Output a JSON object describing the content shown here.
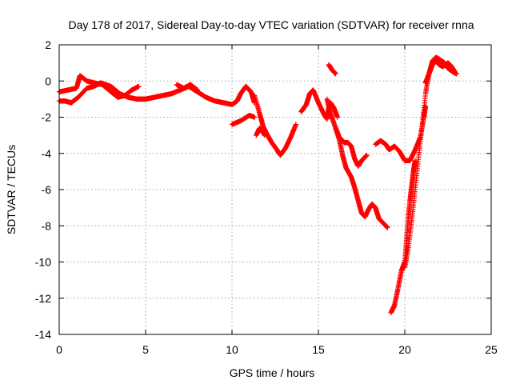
{
  "chart_data": {
    "type": "scatter",
    "title": "Day 178 of 2017, Sidereal Day-to-day VTEC variation (SDTVAR) for receiver rnna",
    "xlabel": "GPS time / hours",
    "ylabel": "SDTVAR / TECUs",
    "xlim": [
      0,
      25
    ],
    "ylim": [
      -14,
      2
    ],
    "xticks": [
      "0",
      "5",
      "10",
      "15",
      "20",
      "25"
    ],
    "yticks": [
      "2",
      "0",
      "-2",
      "-4",
      "-6",
      "-8",
      "-10",
      "-12",
      "-14"
    ],
    "grid": true,
    "marker": "plus",
    "color": "#ff0000",
    "segments": [
      [
        [
          0.0,
          -0.6
        ],
        [
          0.5,
          -0.5
        ],
        [
          1.0,
          -0.4
        ],
        [
          1.2,
          0.3
        ],
        [
          1.6,
          0.0
        ],
        [
          2.0,
          -0.1
        ],
        [
          2.5,
          -0.2
        ],
        [
          3.0,
          -0.6
        ],
        [
          3.4,
          -0.9
        ],
        [
          3.8,
          -0.8
        ],
        [
          4.2,
          -0.5
        ],
        [
          4.6,
          -0.3
        ]
      ],
      [
        [
          0.0,
          -1.1
        ],
        [
          0.3,
          -1.1
        ],
        [
          0.7,
          -1.2
        ],
        [
          1.1,
          -0.9
        ],
        [
          1.6,
          -0.4
        ],
        [
          2.0,
          -0.3
        ],
        [
          2.4,
          -0.1
        ],
        [
          3.0,
          -0.3
        ],
        [
          3.5,
          -0.7
        ],
        [
          4.0,
          -0.9
        ],
        [
          4.5,
          -1.0
        ],
        [
          5.0,
          -1.0
        ],
        [
          5.5,
          -0.9
        ],
        [
          6.0,
          -0.8
        ],
        [
          6.5,
          -0.7
        ],
        [
          7.0,
          -0.5
        ],
        [
          7.5,
          -0.3
        ],
        [
          8.0,
          -0.6
        ],
        [
          8.5,
          -0.9
        ],
        [
          9.0,
          -1.1
        ],
        [
          9.5,
          -1.2
        ],
        [
          10.0,
          -1.3
        ],
        [
          10.3,
          -1.1
        ],
        [
          10.5,
          -0.7
        ],
        [
          10.8,
          -0.3
        ],
        [
          11.1,
          -0.6
        ],
        [
          11.3,
          -1.2
        ]
      ],
      [
        [
          6.8,
          -0.2
        ],
        [
          7.2,
          -0.4
        ],
        [
          7.6,
          -0.2
        ],
        [
          8.0,
          -0.5
        ]
      ],
      [
        [
          10.0,
          -2.4
        ],
        [
          10.5,
          -2.2
        ],
        [
          11.0,
          -1.9
        ],
        [
          11.3,
          -2.0
        ]
      ],
      [
        [
          11.3,
          -0.8
        ],
        [
          11.6,
          -1.8
        ],
        [
          11.8,
          -2.5
        ],
        [
          12.0,
          -2.9
        ],
        [
          12.3,
          -3.4
        ],
        [
          12.6,
          -3.8
        ],
        [
          12.8,
          -4.1
        ],
        [
          13.1,
          -3.7
        ],
        [
          13.4,
          -3.1
        ],
        [
          13.7,
          -2.4
        ]
      ],
      [
        [
          11.4,
          -3.0
        ],
        [
          11.6,
          -2.6
        ],
        [
          11.9,
          -3.0
        ]
      ],
      [
        [
          14.0,
          -1.7
        ],
        [
          14.3,
          -1.3
        ],
        [
          14.5,
          -0.7
        ],
        [
          14.7,
          -0.5
        ],
        [
          15.0,
          -1.2
        ],
        [
          15.3,
          -1.8
        ],
        [
          15.5,
          -2.1
        ],
        [
          15.6,
          -1.5
        ],
        [
          15.7,
          -1.2
        ],
        [
          15.9,
          -1.5
        ],
        [
          16.1,
          -2.0
        ]
      ],
      [
        [
          15.6,
          0.9
        ],
        [
          15.8,
          0.6
        ],
        [
          16.0,
          0.4
        ]
      ],
      [
        [
          15.5,
          -1.0
        ],
        [
          15.7,
          -1.8
        ],
        [
          16.0,
          -2.6
        ],
        [
          16.2,
          -3.2
        ],
        [
          16.4,
          -4.1
        ],
        [
          16.6,
          -4.8
        ],
        [
          16.9,
          -5.3
        ],
        [
          17.1,
          -5.9
        ],
        [
          17.3,
          -6.6
        ],
        [
          17.5,
          -7.3
        ],
        [
          17.7,
          -7.5
        ],
        [
          17.9,
          -7.1
        ],
        [
          18.1,
          -6.8
        ],
        [
          18.3,
          -7.0
        ],
        [
          18.5,
          -7.6
        ],
        [
          18.8,
          -7.9
        ],
        [
          19.0,
          -8.1
        ]
      ],
      [
        [
          16.0,
          -2.6
        ],
        [
          16.2,
          -3.1
        ],
        [
          16.5,
          -3.4
        ],
        [
          16.7,
          -3.4
        ],
        [
          16.9,
          -3.6
        ],
        [
          17.1,
          -4.3
        ],
        [
          17.3,
          -4.7
        ],
        [
          17.5,
          -4.4
        ],
        [
          17.8,
          -4.1
        ]
      ],
      [
        [
          18.3,
          -3.5
        ],
        [
          18.6,
          -3.3
        ],
        [
          18.9,
          -3.5
        ],
        [
          19.1,
          -3.8
        ],
        [
          19.4,
          -3.6
        ],
        [
          19.7,
          -3.9
        ],
        [
          20.0,
          -4.4
        ],
        [
          20.3,
          -4.4
        ],
        [
          20.6,
          -3.8
        ],
        [
          20.9,
          -3.1
        ],
        [
          21.1,
          -2.0
        ],
        [
          21.2,
          -1.4
        ]
      ],
      [
        [
          19.2,
          -12.8
        ],
        [
          19.4,
          -12.4
        ],
        [
          19.6,
          -11.5
        ],
        [
          19.8,
          -10.5
        ],
        [
          20.0,
          -10.0
        ],
        [
          20.1,
          -8.8
        ],
        [
          20.2,
          -7.6
        ],
        [
          20.3,
          -6.6
        ],
        [
          20.4,
          -5.8
        ],
        [
          20.5,
          -5.0
        ],
        [
          20.6,
          -4.4
        ]
      ],
      [
        [
          20.0,
          -10.3
        ],
        [
          20.2,
          -9.2
        ],
        [
          20.4,
          -7.7
        ],
        [
          20.6,
          -6.0
        ],
        [
          20.8,
          -4.2
        ],
        [
          21.0,
          -2.5
        ],
        [
          21.2,
          -0.7
        ],
        [
          21.4,
          0.4
        ],
        [
          21.6,
          1.1
        ],
        [
          21.8,
          1.3
        ],
        [
          22.0,
          1.2
        ],
        [
          22.3,
          1.0
        ],
        [
          22.5,
          0.7
        ],
        [
          22.8,
          0.5
        ],
        [
          23.0,
          0.4
        ]
      ],
      [
        [
          21.2,
          -0.1
        ],
        [
          21.4,
          0.4
        ],
        [
          21.6,
          0.9
        ],
        [
          21.8,
          1.1
        ],
        [
          22.0,
          0.9
        ],
        [
          22.2,
          0.8
        ],
        [
          22.5,
          1.0
        ],
        [
          22.7,
          0.8
        ],
        [
          22.9,
          0.5
        ]
      ]
    ]
  }
}
